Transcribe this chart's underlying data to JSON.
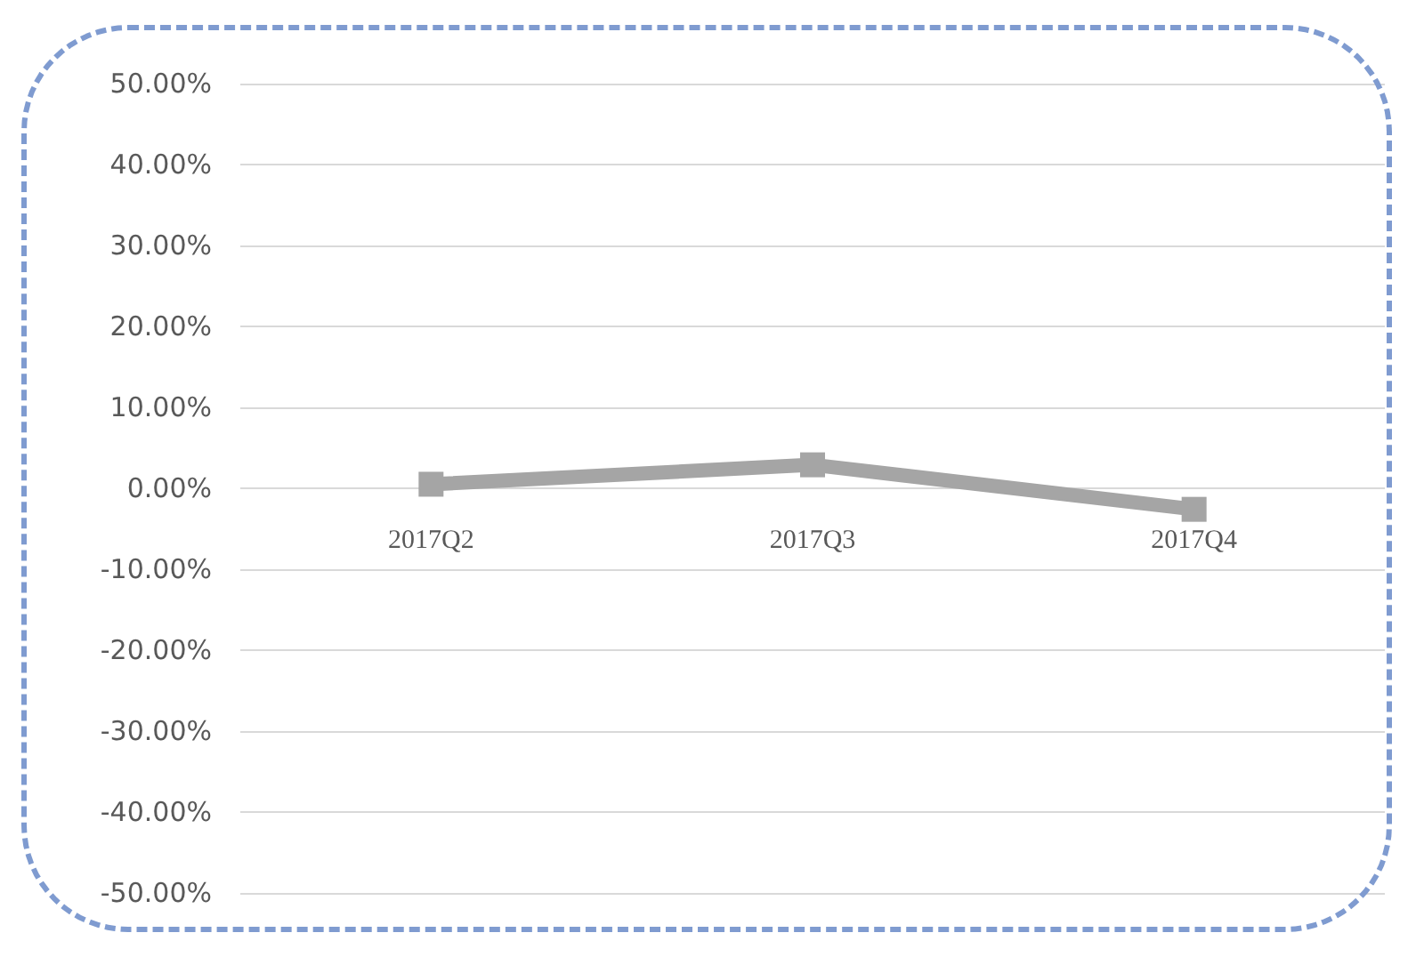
{
  "chart_data": {
    "type": "line",
    "categories": [
      "2017Q2",
      "2017Q3",
      "2017Q4"
    ],
    "series": [
      {
        "color": "#a5a5a5",
        "values": [
          0.5,
          2.9,
          -2.6
        ]
      }
    ],
    "ylim": [
      -50,
      50
    ],
    "yticks": [
      {
        "value": -50,
        "label": "-50.00%"
      },
      {
        "value": -40,
        "label": "-40.00%"
      },
      {
        "value": -30,
        "label": "-30.00%"
      },
      {
        "value": -20,
        "label": "-20.00%"
      },
      {
        "value": -10,
        "label": "-10.00%"
      },
      {
        "value": 0,
        "label": "0.00%"
      },
      {
        "value": 10,
        "label": "10.00%"
      },
      {
        "value": 20,
        "label": "20.00%"
      },
      {
        "value": 30,
        "label": "30.00%"
      },
      {
        "value": 40,
        "label": "40.00%"
      },
      {
        "value": 50,
        "label": "50.00%"
      }
    ],
    "grid": "y",
    "marker": "square"
  }
}
